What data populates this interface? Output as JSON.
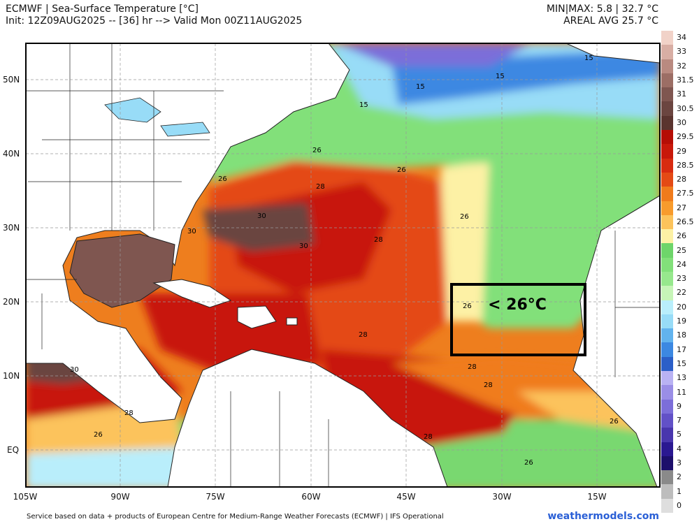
{
  "header": {
    "line1": "ECMWF | Sea-Surface Temperature [°C]",
    "line2": "Init: 12Z09AUG2025 -- [36] hr --> Valid Mon 00Z11AUG2025",
    "minmax": "MIN|MAX: 5.8 | 32.7 °C",
    "areal": "AREAL AVG 25.7 °C"
  },
  "annotation": {
    "text": "< 26°C"
  },
  "lat_labels": [
    "50N",
    "40N",
    "30N",
    "20N",
    "10N",
    "EQ"
  ],
  "lon_labels": [
    "105W",
    "90W",
    "75W",
    "60W",
    "45W",
    "30W",
    "15W"
  ],
  "contour_labels": [
    "15",
    "15",
    "15",
    "15",
    "26",
    "26",
    "26",
    "26",
    "28",
    "30",
    "30",
    "30",
    "28",
    "28",
    "26",
    "28",
    "28",
    "30",
    "28",
    "26",
    "28",
    "26",
    "26"
  ],
  "colorbar": {
    "labels": [
      "34",
      "33",
      "32",
      "31.5",
      "31",
      "30.5",
      "30",
      "29.5",
      "29",
      "28.5",
      "28",
      "27.5",
      "27",
      "26.5",
      "26",
      "25",
      "24",
      "23",
      "22",
      "20",
      "19",
      "18",
      "17",
      "15",
      "13",
      "11",
      "9",
      "7",
      "5",
      "4",
      "3",
      "2",
      "1",
      "0"
    ],
    "colors": [
      "#f1d2c8",
      "#d8aea4",
      "#b98a80",
      "#9c6e65",
      "#7f5650",
      "#6b4540",
      "#5a342f",
      "#b50d05",
      "#c8180a",
      "#d82b10",
      "#e44a15",
      "#f07b1c",
      "#f89b2c",
      "#fcc35b",
      "#fdf1a5",
      "#6ed56a",
      "#82e07a",
      "#97e88d",
      "#c7f5b8",
      "#b9eefb",
      "#98dcf7",
      "#62b3ee",
      "#3c88e2",
      "#2b5fc8",
      "#b9b2f3",
      "#9a8ee6",
      "#7c6ed9",
      "#6251c7",
      "#4936ad",
      "#2a1891",
      "#1c0f6b",
      "#8a8a8a",
      "#bdbdbd",
      "#dedede"
    ]
  },
  "footer": {
    "source": "Service based on data + products of European Centre for Medium-Range Weather Forecasts (ECMWF) | IFS Operational",
    "brand": "weathermodels.com"
  }
}
